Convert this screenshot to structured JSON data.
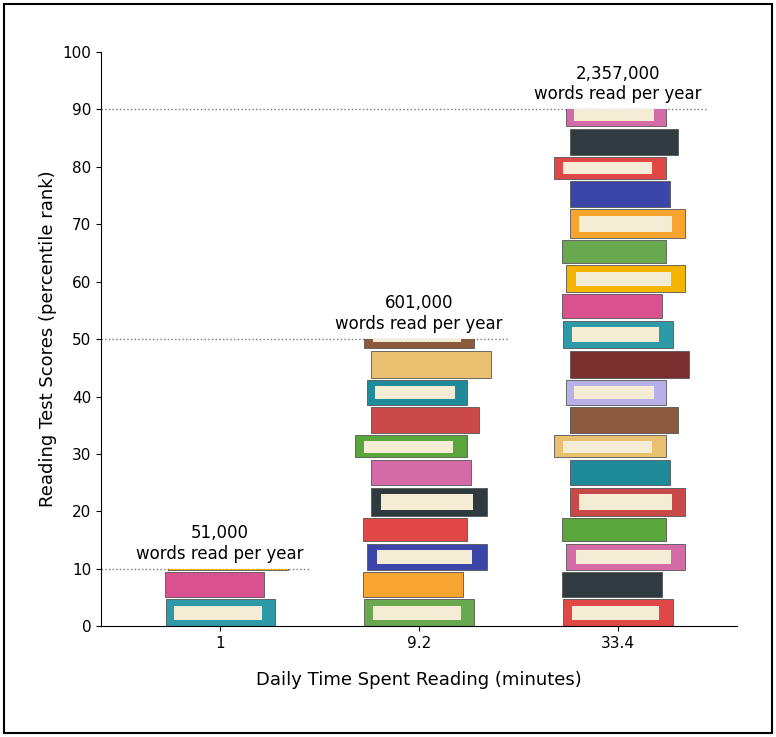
{
  "chart_data": {
    "type": "bar",
    "x_label": "Daily Time Spent Reading (minutes)",
    "y_label": "Reading Test Scores (percentile rank)",
    "categories": [
      "1",
      "9.2",
      "33.4"
    ],
    "values": [
      10,
      50,
      90
    ],
    "annotations": [
      "51,000\nwords read per year",
      "601,000\nwords read per year",
      "2,357,000\nwords read per year"
    ],
    "ylim": [
      0,
      100
    ],
    "yticks": [
      0,
      10,
      20,
      30,
      40,
      50,
      60,
      70,
      80,
      90,
      100
    ],
    "grid": false
  }
}
